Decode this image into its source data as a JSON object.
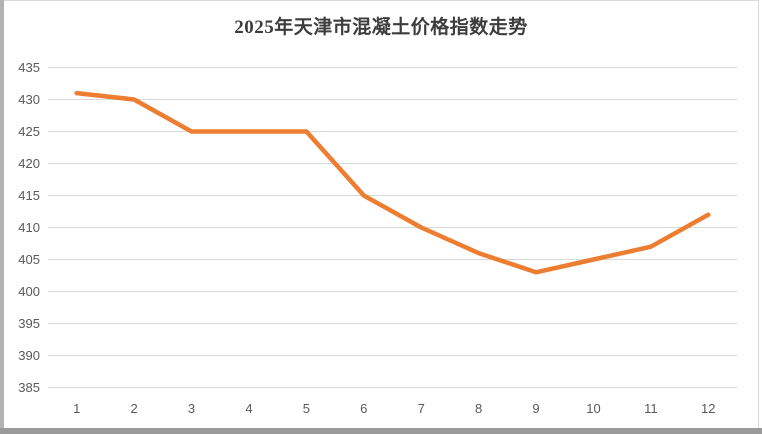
{
  "page": {
    "title": "2025年天津市混凝土价格指数走势"
  },
  "chart_data": {
    "type": "line",
    "title": "2025年天津市混凝土价格指数走势",
    "categories": [
      "1",
      "2",
      "3",
      "4",
      "5",
      "6",
      "7",
      "8",
      "9",
      "10",
      "11",
      "12"
    ],
    "values": [
      431,
      430,
      425,
      425,
      425,
      415,
      410,
      406,
      403,
      405,
      407,
      412
    ],
    "xlabel": "",
    "ylabel": "",
    "ylim": [
      385,
      435
    ],
    "ytick_step": 5,
    "yticks": [
      385,
      390,
      395,
      400,
      405,
      410,
      415,
      420,
      425,
      430,
      435
    ],
    "grid": true,
    "legend": "none",
    "colors": {
      "line": "#ED7D31",
      "gridline": "#d9d9d9",
      "tick_label": "#595959",
      "title": "#3d3d3d"
    }
  }
}
